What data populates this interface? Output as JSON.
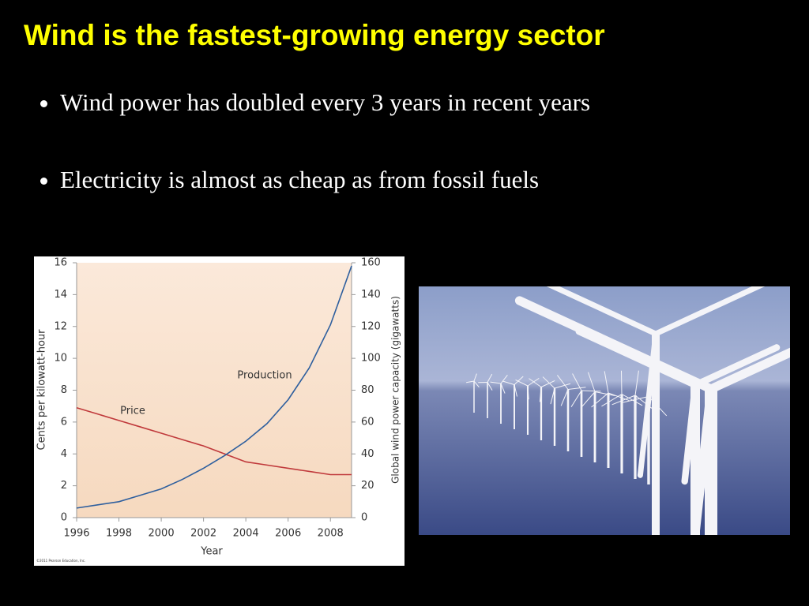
{
  "title": "Wind is the fastest-growing energy sector",
  "bullets": [
    "Wind power has doubled every 3 years in recent years",
    "Electricity is almost as cheap as from fossil fuels"
  ],
  "chart_data": {
    "type": "line",
    "x_label": "Year",
    "y_label": "Cents per kilowatt-hour",
    "y2_label": "Global wind power capacity (gigawatts)",
    "credit": "©2011 Pearson Education, Inc.",
    "x": [
      1996,
      1997,
      1998,
      1999,
      2000,
      2001,
      2002,
      2003,
      2004,
      2005,
      2006,
      2007,
      2008,
      2009
    ],
    "series": [
      {
        "name": "Price",
        "color": "#c0393b",
        "values": [
          6.9,
          6.5,
          6.1,
          5.7,
          5.3,
          4.9,
          4.5,
          4.0,
          3.5,
          3.3,
          3.1,
          2.9,
          2.7,
          2.7
        ]
      },
      {
        "name": "Production",
        "color": "#2e5f9e",
        "axis": "y2",
        "values": [
          6,
          8,
          10,
          14,
          18,
          24,
          31,
          39,
          48,
          59,
          74,
          94,
          121,
          158
        ]
      }
    ],
    "xlim": [
      1996,
      2009
    ],
    "xticks": [
      1996,
      1998,
      2000,
      2002,
      2004,
      2006,
      2008
    ],
    "ylim": [
      0,
      16
    ],
    "yticks": [
      0,
      2,
      4,
      6,
      8,
      10,
      12,
      14,
      16
    ],
    "y2lim": [
      0,
      160
    ],
    "y2ticks": [
      0,
      20,
      40,
      60,
      80,
      100,
      120,
      140,
      160
    ]
  }
}
